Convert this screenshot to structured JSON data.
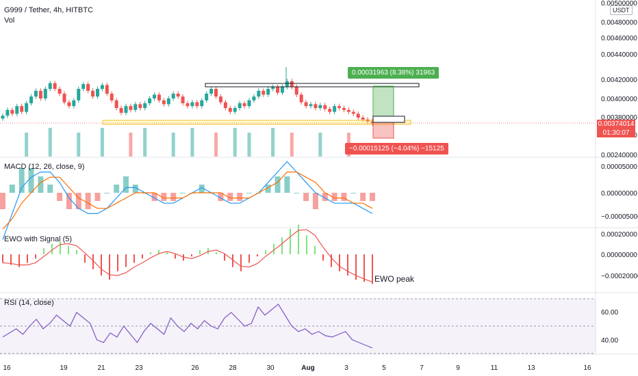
{
  "header": {
    "symbol_line": "G999 / Tether, 4h, HITBTC",
    "vol_label": "Vol",
    "currency_badge": "USDT"
  },
  "price_axis": {
    "ticks": [
      "0.00500000",
      "0.00480000",
      "0.00460000",
      "0.00440000",
      "0.00420000",
      "0.00400000",
      "0.00380000",
      "0.00360000",
      "0.00240000"
    ],
    "last_price": "0.00374014",
    "countdown": "01:30:07",
    "last_price_color": "#ef5350"
  },
  "measure": {
    "up_label": "0.00031963 (8.38%) 31963",
    "down_label": "−0.00015125 (−4.04%) −15125",
    "up_color": "#4caf50",
    "down_color": "#ef5350"
  },
  "panes": {
    "macd": {
      "label": "MACD (12, 26, close, 9)",
      "ticks": [
        "0.00005000",
        "0.00000000",
        "−0.00005000"
      ]
    },
    "ewo": {
      "label": "EWO with Signal (5)",
      "ticks": [
        "0.00020000",
        "0.00000000",
        "−0.00020000"
      ],
      "note": "EWO peak"
    },
    "rsi": {
      "label": "RSI (14, close)",
      "ticks": [
        "60.00",
        "40.00"
      ]
    }
  },
  "x_axis": [
    "16",
    "19",
    "21",
    "23",
    "26",
    "28",
    "30",
    "Aug",
    "3",
    "5",
    "7",
    "9",
    "11",
    "13",
    "16"
  ],
  "colors": {
    "up": "#26a69a",
    "down": "#ef5350",
    "macd": "#2196f3",
    "signal": "#ff6d00",
    "rsi": "#7e57c2",
    "ewo_up": "#7ee37e",
    "ewo_down": "#ef5350"
  },
  "chart_data": [
    {
      "type": "candlestick",
      "title": "G999 / Tether, 4h, HITBTC",
      "ylim": [
        0.0024,
        0.005
      ],
      "close_series": [
        0.00382,
        0.00388,
        0.00384,
        0.00392,
        0.00386,
        0.00395,
        0.00402,
        0.00408,
        0.004,
        0.0041,
        0.00416,
        0.0041,
        0.00405,
        0.00396,
        0.00392,
        0.00398,
        0.0041,
        0.00415,
        0.00408,
        0.00402,
        0.0041,
        0.00414,
        0.00405,
        0.00398,
        0.0039,
        0.00385,
        0.00392,
        0.00388,
        0.00394,
        0.0039,
        0.00395,
        0.004,
        0.00404,
        0.00398,
        0.00394,
        0.004,
        0.00405,
        0.00402,
        0.00395,
        0.00392,
        0.00396,
        0.00392,
        0.00398,
        0.00405,
        0.0041,
        0.00402,
        0.00396,
        0.0039,
        0.00386,
        0.0039,
        0.00395,
        0.00392,
        0.00398,
        0.00402,
        0.00408,
        0.00404,
        0.0041,
        0.00412,
        0.00406,
        0.00412,
        0.00418,
        0.00412,
        0.00404,
        0.00396,
        0.00392,
        0.00394,
        0.0039,
        0.00393,
        0.00389,
        0.00386,
        0.00392,
        0.0039,
        0.00388,
        0.00386,
        0.00384,
        0.0038,
        0.00378,
        0.00376,
        0.00374
      ]
    },
    {
      "type": "bar",
      "title": "Vol",
      "values": [
        3,
        2,
        4,
        2,
        3,
        5,
        2,
        3,
        4,
        2,
        6,
        3,
        2,
        4,
        3,
        2,
        5,
        3,
        2,
        4,
        3,
        6,
        2,
        3,
        4,
        3,
        2,
        5,
        3,
        4,
        6,
        3,
        2,
        4,
        3,
        2,
        5,
        3,
        2,
        4,
        6,
        3,
        2,
        4,
        3,
        5,
        2,
        3,
        4,
        6,
        3,
        2,
        5,
        3,
        4,
        2,
        3,
        6,
        4,
        3,
        2,
        5,
        3,
        4,
        2,
        3,
        4,
        5,
        3,
        2,
        4,
        3,
        2,
        5,
        3,
        4,
        2,
        3,
        4
      ]
    },
    {
      "type": "line",
      "title": "MACD (12, 26, close, 9)",
      "series": [
        {
          "name": "MACD",
          "values": [
            -9e-05,
            -4e-05,
            1e-05,
            3e-05,
            4e-05,
            4e-05,
            2e-05,
            -1e-05,
            -3e-05,
            -4e-05,
            -4e-05,
            -3e-05,
            -1e-05,
            1e-05,
            1e-05,
            0.0,
            -1e-05,
            -2e-05,
            -2e-05,
            -1e-05,
            0.0,
            1e-05,
            0.0,
            -1e-05,
            -2e-05,
            -2e-05,
            -1e-05,
            0.0,
            2e-05,
            4e-05,
            6e-05,
            4e-05,
            2e-05,
            0.0,
            -1e-05,
            -2e-05,
            -2e-05,
            -2e-05,
            -3e-05,
            -4e-05
          ]
        },
        {
          "name": "Signal",
          "values": [
            -7e-05,
            -5e-05,
            -2e-05,
            0.0,
            2e-05,
            3e-05,
            3e-05,
            1e-05,
            -1e-05,
            -2e-05,
            -3e-05,
            -3e-05,
            -2e-05,
            -1e-05,
            0.0,
            0.0,
            0.0,
            -1e-05,
            -1e-05,
            -1e-05,
            0.0,
            0.0,
            0.0,
            0.0,
            -1e-05,
            -1e-05,
            -1e-05,
            0.0,
            1e-05,
            2e-05,
            4e-05,
            4e-05,
            3e-05,
            2e-05,
            0.0,
            -1e-05,
            -1e-05,
            -2e-05,
            -2e-05,
            -3e-05
          ]
        }
      ]
    },
    {
      "type": "bar",
      "title": "EWO with Signal (5)",
      "values": [
        -4e-05,
        -5e-05,
        -6e-05,
        -4e-05,
        -2e-05,
        3e-05,
        5e-05,
        6e-05,
        4e-05,
        2e-05,
        -4e-05,
        -7e-05,
        -0.0001,
        -0.00012,
        -8e-05,
        -6e-05,
        -4e-05,
        -2e-05,
        1e-05,
        2e-05,
        1e-05,
        -2e-05,
        -3e-05,
        -1e-05,
        2e-05,
        3e-05,
        1e-05,
        -3e-05,
        -6e-05,
        -8e-05,
        -4e-05,
        -1e-05,
        2e-05,
        5e-05,
        8e-05,
        0.00012,
        0.00014,
        9e-05,
        4e-05,
        -3e-05,
        -6e-05,
        -8e-05,
        -0.0001,
        -0.00012,
        -0.00013,
        -0.00014
      ]
    },
    {
      "type": "line",
      "title": "RSI (14, close)",
      "ylim": [
        30,
        70
      ],
      "values": [
        42,
        45,
        48,
        44,
        50,
        55,
        48,
        52,
        58,
        54,
        50,
        60,
        56,
        52,
        40,
        38,
        45,
        42,
        50,
        44,
        38,
        46,
        52,
        48,
        44,
        56,
        50,
        46,
        52,
        48,
        54,
        50,
        48,
        56,
        60,
        55,
        50,
        52,
        64,
        58,
        62,
        66,
        58,
        50,
        46,
        48,
        44,
        46,
        43,
        42,
        44,
        46,
        40,
        38,
        36,
        34
      ]
    }
  ]
}
